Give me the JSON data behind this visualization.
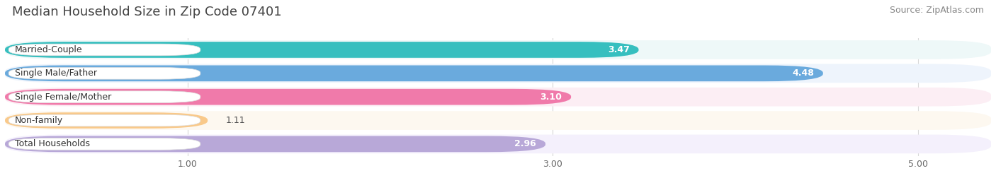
{
  "title": "Median Household Size in Zip Code 07401",
  "source": "Source: ZipAtlas.com",
  "categories": [
    "Married-Couple",
    "Single Male/Father",
    "Single Female/Mother",
    "Non-family",
    "Total Households"
  ],
  "values": [
    3.47,
    4.48,
    3.1,
    1.11,
    2.96
  ],
  "bar_colors": [
    "#36bfbf",
    "#6aaadd",
    "#f07aaa",
    "#f9c98a",
    "#b8a8d8"
  ],
  "bar_bg_colors": [
    "#eef8f8",
    "#eef4fc",
    "#fceef4",
    "#fdf8f0",
    "#f4f0fc"
  ],
  "xlim_min": 0.0,
  "xlim_max": 5.4,
  "xticks": [
    1.0,
    3.0,
    5.0
  ],
  "xtick_labels": [
    "1.00",
    "3.00",
    "5.00"
  ],
  "title_fontsize": 13,
  "source_fontsize": 9,
  "label_fontsize": 9,
  "value_fontsize": 9,
  "background_color": "#ffffff"
}
